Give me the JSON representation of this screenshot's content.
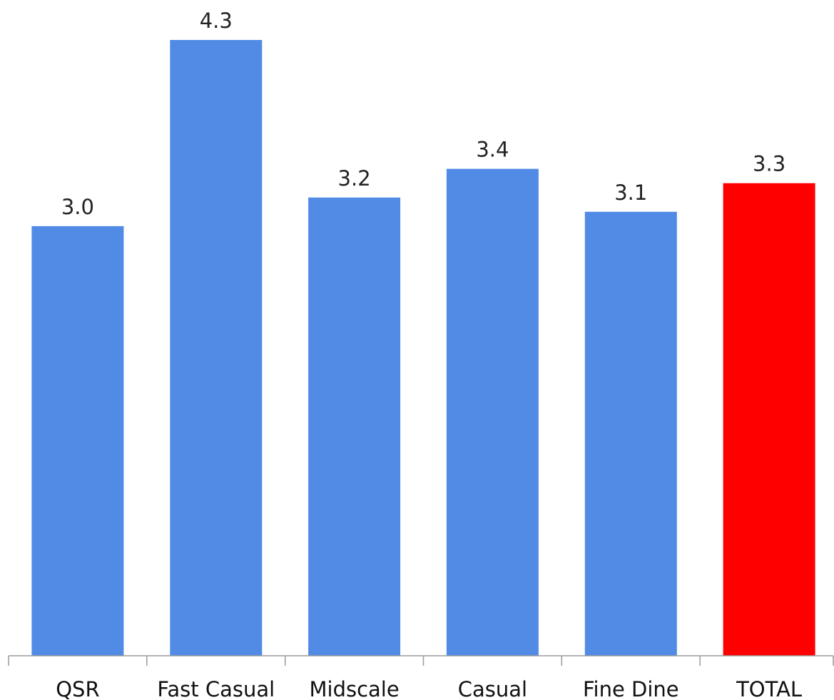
{
  "chart_data": {
    "type": "bar",
    "title": "",
    "xlabel": "",
    "ylabel": "",
    "categories": [
      "QSR",
      "Fast Casual",
      "Midscale",
      "Casual",
      "Fine Dine",
      "TOTAL"
    ],
    "values": [
      3.0,
      4.3,
      3.2,
      3.4,
      3.1,
      3.3
    ],
    "value_labels": [
      "3.0",
      "4.3",
      "3.2",
      "3.4",
      "3.1",
      "3.3"
    ],
    "ylim": [
      0,
      4.5
    ],
    "grid": false,
    "legend": "none",
    "show_y_axis": false,
    "colors": {
      "default_bar": "#518be6",
      "highlight_bar": "#ff0000",
      "axis": "#9a9a9a"
    },
    "highlight_category": "TOTAL"
  }
}
